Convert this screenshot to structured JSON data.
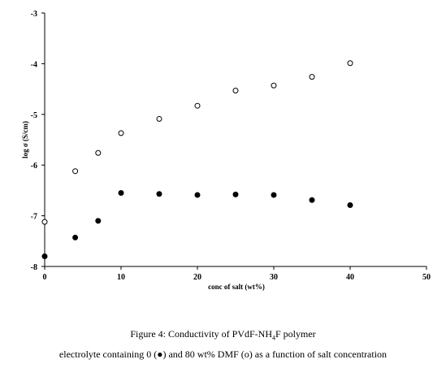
{
  "chart_data": {
    "type": "scatter",
    "xlabel": "conc of salt (wt%)",
    "ylabel": "log σ (S/cm)",
    "xlim": [
      0,
      50
    ],
    "ylim": [
      -8,
      -3
    ],
    "xticks": [
      0,
      10,
      20,
      30,
      40,
      50
    ],
    "yticks": [
      -3,
      -4,
      -5,
      -6,
      -7,
      -8
    ],
    "grid": false,
    "series": [
      {
        "marker": "filled-circle",
        "x": [
          0,
          4,
          7,
          10,
          15,
          20,
          25,
          30,
          35,
          40
        ],
        "y": [
          -7.8,
          -7.43,
          -7.1,
          -6.55,
          -6.57,
          -6.59,
          -6.58,
          -6.59,
          -6.69,
          -6.79
        ]
      },
      {
        "marker": "open-circle",
        "x": [
          0,
          4,
          7,
          10,
          15,
          20,
          25,
          30,
          35,
          40
        ],
        "y": [
          -7.12,
          -6.12,
          -5.76,
          -5.37,
          -5.09,
          -4.83,
          -4.53,
          -4.43,
          -4.26,
          -3.99
        ]
      }
    ]
  },
  "caption": {
    "line1_prefix": "Figure 4: Conductivity of PVdF-NH",
    "line1_sub": "4",
    "line1_suffix": "F polymer",
    "line2": "electrolyte containing 0 (●) and 80 wt% DMF (o) as a function of salt concentration"
  },
  "colors": {
    "axis": "#000000",
    "marker_fill": "#000000",
    "marker_open_fill": "#ffffff"
  }
}
